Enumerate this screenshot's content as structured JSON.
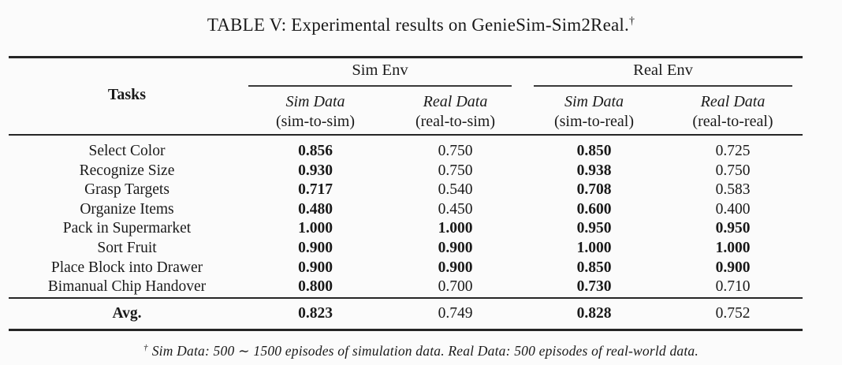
{
  "title": {
    "text": "TABLE V: Experimental results on GenieSim-Sim2Real.",
    "dagger": "†"
  },
  "table": {
    "tasks_header": "Tasks",
    "env_groups": [
      {
        "label": "Sim Env"
      },
      {
        "label": "Real Env"
      }
    ],
    "sub_headers": [
      {
        "name": "Sim Data",
        "paren": "(sim-to-sim)"
      },
      {
        "name": "Real Data",
        "paren": "(real-to-sim)"
      },
      {
        "name": "Sim Data",
        "paren": "(sim-to-real)"
      },
      {
        "name": "Real Data",
        "paren": "(real-to-real)"
      }
    ],
    "rows": [
      {
        "task": "Select Color",
        "values": [
          "0.856",
          "0.750",
          "0.850",
          "0.725"
        ],
        "bold": [
          true,
          false,
          true,
          false
        ]
      },
      {
        "task": "Recognize Size",
        "values": [
          "0.930",
          "0.750",
          "0.938",
          "0.750"
        ],
        "bold": [
          true,
          false,
          true,
          false
        ]
      },
      {
        "task": "Grasp Targets",
        "values": [
          "0.717",
          "0.540",
          "0.708",
          "0.583"
        ],
        "bold": [
          true,
          false,
          true,
          false
        ]
      },
      {
        "task": "Organize Items",
        "values": [
          "0.480",
          "0.450",
          "0.600",
          "0.400"
        ],
        "bold": [
          true,
          false,
          true,
          false
        ]
      },
      {
        "task": "Pack in Supermarket",
        "values": [
          "1.000",
          "1.000",
          "0.950",
          "0.950"
        ],
        "bold": [
          true,
          true,
          true,
          true
        ]
      },
      {
        "task": "Sort Fruit",
        "values": [
          "0.900",
          "0.900",
          "1.000",
          "1.000"
        ],
        "bold": [
          true,
          true,
          true,
          true
        ]
      },
      {
        "task": "Place Block into Drawer",
        "values": [
          "0.900",
          "0.900",
          "0.850",
          "0.900"
        ],
        "bold": [
          true,
          true,
          true,
          true
        ]
      },
      {
        "task": "Bimanual Chip Handover",
        "values": [
          "0.800",
          "0.700",
          "0.730",
          "0.710"
        ],
        "bold": [
          true,
          false,
          true,
          false
        ]
      }
    ],
    "avg_row": {
      "task": "Avg.",
      "values": [
        "0.823",
        "0.749",
        "0.828",
        "0.752"
      ],
      "bold": [
        true,
        false,
        true,
        false
      ]
    }
  },
  "footnote": {
    "dagger": "†",
    "text": "Sim Data: 500 ∼ 1500 episodes of simulation data. Real Data: 500 episodes of real-world data."
  }
}
